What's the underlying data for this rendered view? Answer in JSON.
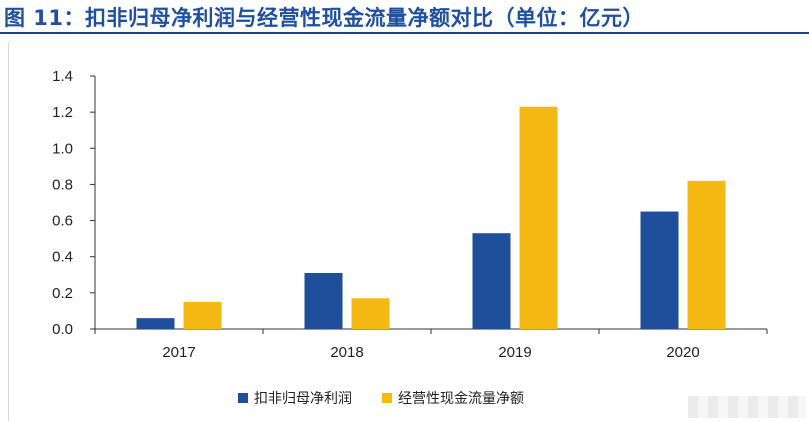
{
  "header": {
    "title": "图 11：扣非归母净利润与经营性现金流量净额对比（单位：亿元）"
  },
  "chart_data": {
    "type": "bar",
    "categories": [
      "2017",
      "2018",
      "2019",
      "2020"
    ],
    "series": [
      {
        "name": "扣非归母净利润",
        "values": [
          0.06,
          0.31,
          0.53,
          0.65
        ],
        "color": "#1f4e9b"
      },
      {
        "name": "经营性现金流量净额",
        "values": [
          0.15,
          0.17,
          1.23,
          0.82
        ],
        "color": "#f5b914"
      }
    ],
    "ylim": [
      0,
      1.4
    ],
    "yticks": [
      "0.0",
      "0.2",
      "0.4",
      "0.6",
      "0.8",
      "1.0",
      "1.2",
      "1.4"
    ],
    "grid": false,
    "legend": "bottom"
  }
}
